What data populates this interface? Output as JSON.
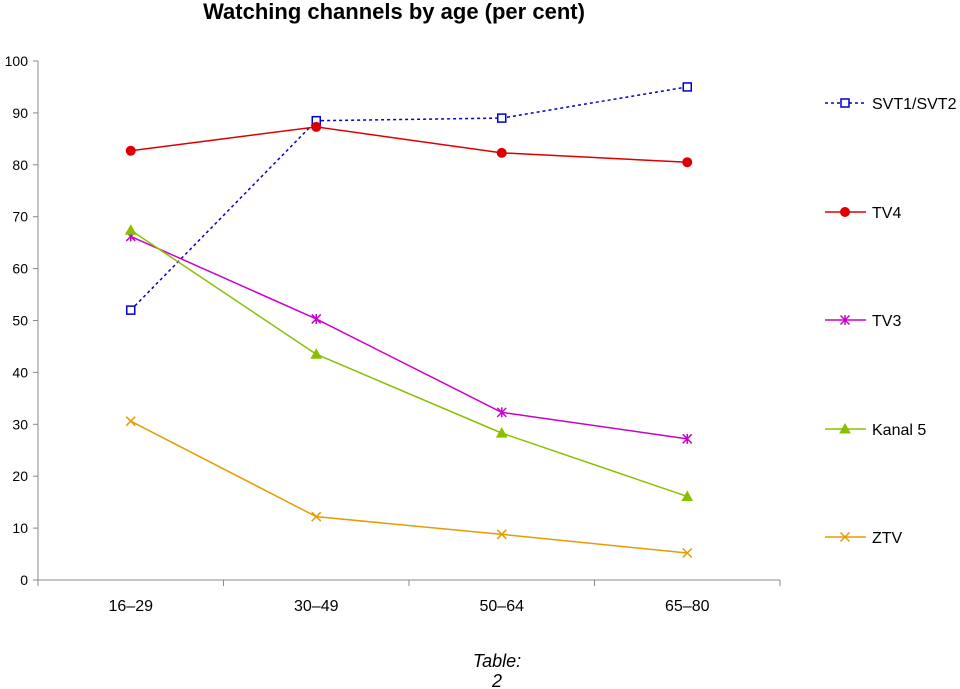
{
  "chart_data": {
    "type": "line",
    "title": "Watching channels by age (per cent)",
    "xlabel": "",
    "ylabel": "",
    "categories": [
      "16–29",
      "30–49",
      "50–64",
      "65–80"
    ],
    "ylim": [
      0,
      100
    ],
    "yticks": [
      0,
      10,
      20,
      30,
      40,
      50,
      60,
      70,
      80,
      90,
      100
    ],
    "grid": false,
    "legend_position": "right",
    "series": [
      {
        "name": "SVT1/SVT2",
        "values": [
          52,
          88.5,
          89,
          95
        ],
        "color": "#0000cc",
        "marker": "open-square",
        "dashed": true
      },
      {
        "name": "TV4",
        "values": [
          82.7,
          87.3,
          82.3,
          80.5
        ],
        "color": "#dd0000",
        "marker": "filled-circle",
        "dashed": false
      },
      {
        "name": "TV3",
        "values": [
          66.2,
          50.3,
          32.3,
          27.2
        ],
        "color": "#cc00cc",
        "marker": "star",
        "dashed": false
      },
      {
        "name": "Kanal 5",
        "values": [
          67.4,
          43.5,
          28.3,
          16.1
        ],
        "color": "#88c000",
        "marker": "filled-triangle",
        "dashed": false
      },
      {
        "name": "ZTV",
        "values": [
          30.6,
          12.2,
          8.8,
          5.2
        ],
        "color": "#e69c00",
        "marker": "x",
        "dashed": false
      }
    ]
  },
  "caption": {
    "line1": "Table:",
    "line2": "2"
  }
}
